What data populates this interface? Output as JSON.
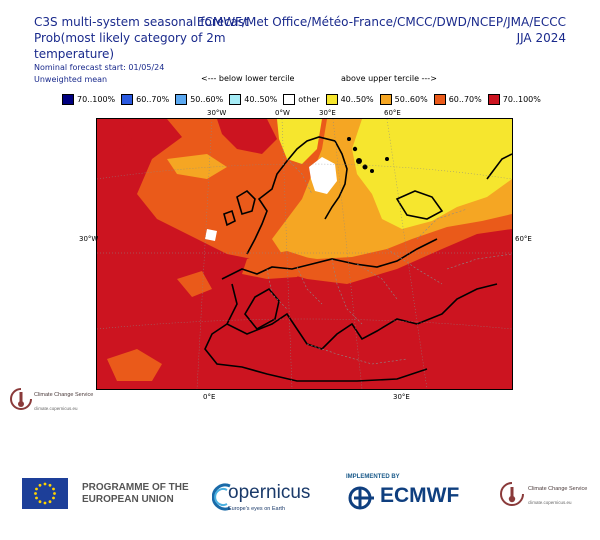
{
  "header": {
    "title_line1": "C3S multi-system seasonal forecast",
    "title_line2": "Prob(most likely category of 2m temperature)",
    "forecast_start": "Nominal forecast start: 01/05/24",
    "mean_type": "Unweighted mean",
    "centres": "ECMWF/Met Office/Météo-France/CMCC/DWD/NCEP/JMA/ECCC",
    "season": "JJA 2024"
  },
  "tercile_labels": {
    "below": "<--- below lower tercile",
    "above": "above upper tercile --->"
  },
  "legend": {
    "items": [
      {
        "label": "70..100%",
        "color": "#00007f"
      },
      {
        "label": "60..70%",
        "color": "#2b5ae0"
      },
      {
        "label": "50..60%",
        "color": "#5ba8f0"
      },
      {
        "label": "40..50%",
        "color": "#a6ecf6"
      },
      {
        "label": "other",
        "color": "#ffffff"
      },
      {
        "label": "40..50%",
        "color": "#f6e62e"
      },
      {
        "label": "50..60%",
        "color": "#f5a623"
      },
      {
        "label": "60..70%",
        "color": "#ea5a1a"
      },
      {
        "label": "70..100%",
        "color": "#cc1420"
      }
    ]
  },
  "map": {
    "top_labels": [
      "30°W",
      "0°W",
      "30°E",
      "60°E"
    ],
    "left_label": "30°W",
    "right_label": "60°E",
    "bottom_labels": [
      "0°E",
      "30°E"
    ]
  },
  "logos": {
    "c3s_name": "Climate Change Service",
    "c3s_url": "climate.copernicus.eu",
    "programme": "PROGRAMME OF THE EUROPEAN UNION",
    "copernicus": "opernicus",
    "copernicus_tag": "Europe's eyes on Earth",
    "implemented_by": "IMPLEMENTED BY",
    "ecmwf": "ECMWF"
  }
}
